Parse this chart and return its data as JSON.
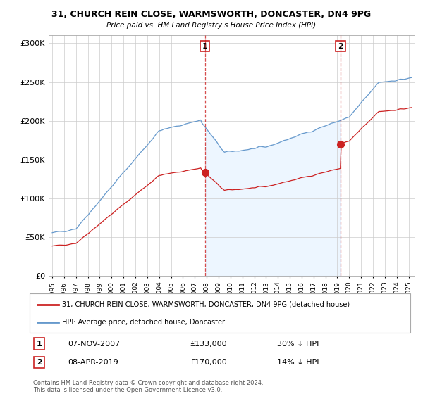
{
  "title_line1": "31, CHURCH REIN CLOSE, WARMSWORTH, DONCASTER, DN4 9PG",
  "title_line2": "Price paid vs. HM Land Registry's House Price Index (HPI)",
  "legend_label_red": "31, CHURCH REIN CLOSE, WARMSWORTH, DONCASTER, DN4 9PG (detached house)",
  "legend_label_blue": "HPI: Average price, detached house, Doncaster",
  "annotation1_label": "1",
  "annotation1_date": "07-NOV-2007",
  "annotation1_price": "£133,000",
  "annotation1_hpi": "30% ↓ HPI",
  "annotation1_year": 2007.85,
  "annotation1_value": 133000,
  "annotation2_label": "2",
  "annotation2_date": "08-APR-2019",
  "annotation2_price": "£170,000",
  "annotation2_hpi": "14% ↓ HPI",
  "annotation2_year": 2019.27,
  "annotation2_value": 170000,
  "footer": "Contains HM Land Registry data © Crown copyright and database right 2024.\nThis data is licensed under the Open Government Licence v3.0.",
  "red_color": "#cc2222",
  "blue_color": "#6699cc",
  "blue_fill_color": "#ddeeff",
  "vline_color": "#cc2222",
  "ylim": [
    0,
    310000
  ],
  "yticks": [
    0,
    50000,
    100000,
    150000,
    200000,
    250000,
    300000
  ],
  "xmin": 1994.7,
  "xmax": 2025.5,
  "background_color": "#ffffff",
  "grid_color": "#cccccc"
}
